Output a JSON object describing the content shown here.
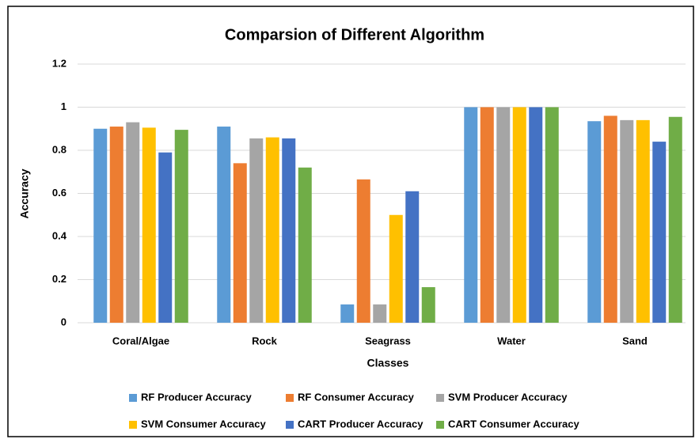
{
  "chart_data": {
    "type": "bar",
    "title": "Comparsion of Different Algorithm",
    "x_label": "Classes",
    "y_label": "Accuracy",
    "categories": [
      "Coral/Algae",
      "Rock",
      "Seagrass",
      "Water",
      "Sand"
    ],
    "series": [
      {
        "name": "RF Producer Accuracy",
        "color": "#5b9bd5",
        "values": [
          0.9,
          0.91,
          0.085,
          1,
          0.935
        ]
      },
      {
        "name": "RF Consumer Accuracy",
        "color": "#ed7d31",
        "values": [
          0.91,
          0.74,
          0.665,
          1,
          0.96
        ]
      },
      {
        "name": "SVM Producer Accuracy",
        "color": "#a5a5a5",
        "values": [
          0.93,
          0.855,
          0.085,
          1,
          0.94
        ]
      },
      {
        "name": "SVM Consumer Accuracy",
        "color": "#ffc000",
        "values": [
          0.905,
          0.86,
          0.5,
          1,
          0.94
        ]
      },
      {
        "name": "CART Producer Accuracy",
        "color": "#4472c4",
        "values": [
          0.79,
          0.855,
          0.61,
          1,
          0.84
        ]
      },
      {
        "name": "CART Consumer Accuracy",
        "color": "#70ad47",
        "values": [
          0.895,
          0.72,
          0.165,
          1,
          0.955
        ]
      }
    ],
    "ylim": [
      0,
      1.2
    ],
    "yticks": [
      0,
      0.2,
      0.4,
      0.6,
      0.8,
      1,
      1.2
    ],
    "grid": true,
    "legend": "bottom"
  }
}
